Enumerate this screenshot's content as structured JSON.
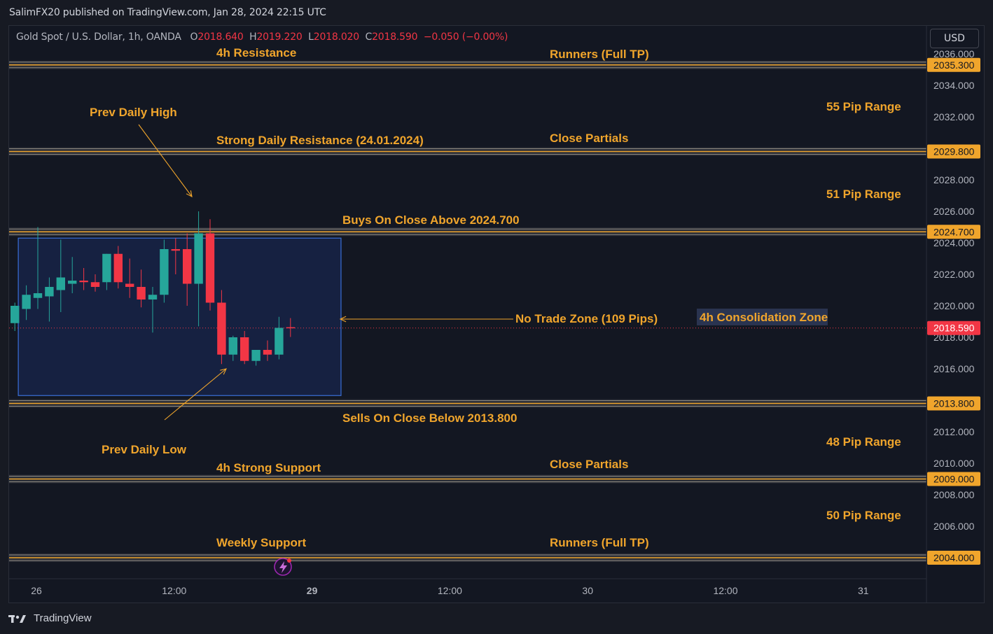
{
  "publisher": "SalimFX20 published on TradingView.com, Jan 28, 2024 22:15 UTC",
  "legend": {
    "symbol": "Gold Spot / U.S. Dollar, 1h, OANDA",
    "o_label": "O",
    "o": "2018.640",
    "h_label": "H",
    "h": "2019.220",
    "l_label": "L",
    "l": "2018.020",
    "c_label": "C",
    "c": "2018.590",
    "change": "−0.050 (−0.00%)"
  },
  "currency": "USD",
  "brand": "TradingView",
  "colors": {
    "up": "#26a69a",
    "down": "#f23645",
    "level": "#f0a52c",
    "zone": "#2962ff",
    "background": "#131722"
  },
  "chart_data": {
    "type": "candlestick",
    "symbol": "XAUUSD",
    "timeframe": "1h",
    "ylim": [
      2003.0,
      2036.3
    ],
    "y_ticks": [
      "2036.000",
      "2034.000",
      "2032.000",
      "2028.000",
      "2026.000",
      "2024.000",
      "2022.000",
      "2020.000",
      "2018.000",
      "2016.000",
      "2012.000",
      "2010.000",
      "2008.000",
      "2006.000"
    ],
    "x_ticks": [
      {
        "label": "26",
        "bar": 2
      },
      {
        "label": "12:00",
        "bar": 14
      },
      {
        "label": "29",
        "bar": 26
      },
      {
        "label": "12:00",
        "bar": 38
      },
      {
        "label": "30",
        "bar": 50
      },
      {
        "label": "12:00",
        "bar": 62
      },
      {
        "label": "31",
        "bar": 74
      }
    ],
    "candles": [
      {
        "o": 2018.9,
        "h": 2020.2,
        "l": 2018.4,
        "c": 2020.0
      },
      {
        "o": 2019.8,
        "h": 2021.3,
        "l": 2019.1,
        "c": 2020.7
      },
      {
        "o": 2020.5,
        "h": 2025.0,
        "l": 2019.8,
        "c": 2020.8
      },
      {
        "o": 2020.6,
        "h": 2021.8,
        "l": 2019.0,
        "c": 2021.2
      },
      {
        "o": 2021.0,
        "h": 2024.2,
        "l": 2019.6,
        "c": 2021.8
      },
      {
        "o": 2021.4,
        "h": 2023.1,
        "l": 2020.8,
        "c": 2021.6
      },
      {
        "o": 2021.6,
        "h": 2022.4,
        "l": 2021.0,
        "c": 2021.5
      },
      {
        "o": 2021.5,
        "h": 2022.0,
        "l": 2020.9,
        "c": 2021.2
      },
      {
        "o": 2021.5,
        "h": 2023.3,
        "l": 2021.0,
        "c": 2023.3
      },
      {
        "o": 2023.3,
        "h": 2023.8,
        "l": 2021.1,
        "c": 2021.5
      },
      {
        "o": 2021.4,
        "h": 2023.0,
        "l": 2020.5,
        "c": 2021.2
      },
      {
        "o": 2021.2,
        "h": 2022.3,
        "l": 2019.9,
        "c": 2020.4
      },
      {
        "o": 2020.4,
        "h": 2021.2,
        "l": 2018.3,
        "c": 2020.7
      },
      {
        "o": 2020.7,
        "h": 2024.2,
        "l": 2020.2,
        "c": 2023.6
      },
      {
        "o": 2023.6,
        "h": 2024.3,
        "l": 2022.0,
        "c": 2023.5
      },
      {
        "o": 2023.6,
        "h": 2024.6,
        "l": 2020.0,
        "c": 2021.4
      },
      {
        "o": 2021.4,
        "h": 2026.0,
        "l": 2018.7,
        "c": 2024.6
      },
      {
        "o": 2024.6,
        "h": 2025.5,
        "l": 2019.7,
        "c": 2020.2
      },
      {
        "o": 2020.2,
        "h": 2021.0,
        "l": 2016.3,
        "c": 2016.9
      },
      {
        "o": 2016.9,
        "h": 2018.1,
        "l": 2016.5,
        "c": 2018.0
      },
      {
        "o": 2018.0,
        "h": 2018.4,
        "l": 2016.3,
        "c": 2016.5
      },
      {
        "o": 2016.5,
        "h": 2017.2,
        "l": 2016.2,
        "c": 2017.2
      },
      {
        "o": 2017.2,
        "h": 2017.8,
        "l": 2016.5,
        "c": 2016.9
      },
      {
        "o": 2016.9,
        "h": 2019.3,
        "l": 2016.6,
        "c": 2018.6
      },
      {
        "o": 2018.64,
        "h": 2019.22,
        "l": 2018.02,
        "c": 2018.59
      }
    ],
    "levels": [
      {
        "price": 2035.3,
        "label": "2035.300"
      },
      {
        "price": 2029.8,
        "label": "2029.800"
      },
      {
        "price": 2024.7,
        "label": "2024.700"
      },
      {
        "price": 2013.8,
        "label": "2013.800"
      },
      {
        "price": 2009.0,
        "label": "2009.000"
      },
      {
        "price": 2004.0,
        "label": "2004.000"
      }
    ],
    "last_price": {
      "price": 2018.59,
      "label": "2018.590"
    },
    "zone": {
      "bar_start": 0.8,
      "bar_end": 28.9,
      "top": 2024.3,
      "bottom": 2014.3,
      "label": "4h Consolidation Zone"
    },
    "annotations": {
      "a1": "4h Resistance",
      "a2": "Runners (Full TP)",
      "a3": "55 Pip Range",
      "a4": "Prev Daily High",
      "a5": "Strong Daily Resistance (24.01.2024)",
      "a6": "Close Partials",
      "a7": "51 Pip Range",
      "a8": "Buys On Close Above 2024.700",
      "a9": "No Trade Zone (109 Pips)",
      "a10": "Sells On Close Below 2013.800",
      "a11": "48 Pip Range",
      "a12": "Prev Daily Low",
      "a13": "4h Strong Support",
      "a14": "Close Partials",
      "a15": "50 Pip Range",
      "a16": "Weekly Support",
      "a17": "Runners (Full TP)"
    }
  }
}
